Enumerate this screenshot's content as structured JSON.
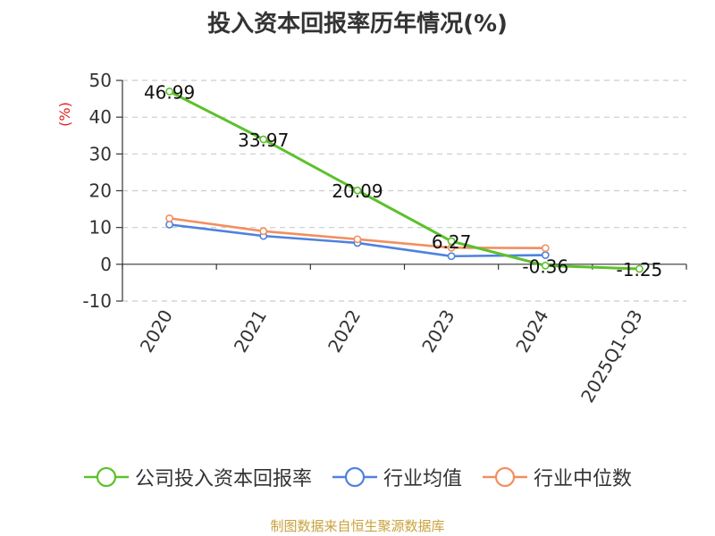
{
  "chart_data": {
    "type": "line",
    "title": "投入资本回报率历年情况(%)",
    "ylabel": "(%)",
    "xlabel": "",
    "categories": [
      "2020",
      "2021",
      "2022",
      "2023",
      "2024",
      "2025Q1-Q3"
    ],
    "ylim": [
      -10,
      50
    ],
    "yticks": [
      50,
      40,
      30,
      20,
      10,
      0,
      -10
    ],
    "grid": true,
    "legend_position": "bottom",
    "series": [
      {
        "name": "公司投入资本回报率",
        "color": "#5cc12c",
        "values": [
          46.99,
          33.97,
          20.09,
          6.27,
          -0.36,
          -1.25
        ],
        "labels": [
          "46.99",
          "33.97",
          "20.09",
          "6.27",
          "-0.36",
          "-1.25"
        ]
      },
      {
        "name": "行业均值",
        "color": "#4f82dd",
        "values": [
          10.8,
          7.7,
          5.8,
          2.2,
          2.5,
          null
        ]
      },
      {
        "name": "行业中位数",
        "color": "#f28f5f",
        "values": [
          12.5,
          9.0,
          6.8,
          4.5,
          4.4,
          null
        ]
      }
    ]
  },
  "source_note": "制图数据来自恒生聚源数据库"
}
